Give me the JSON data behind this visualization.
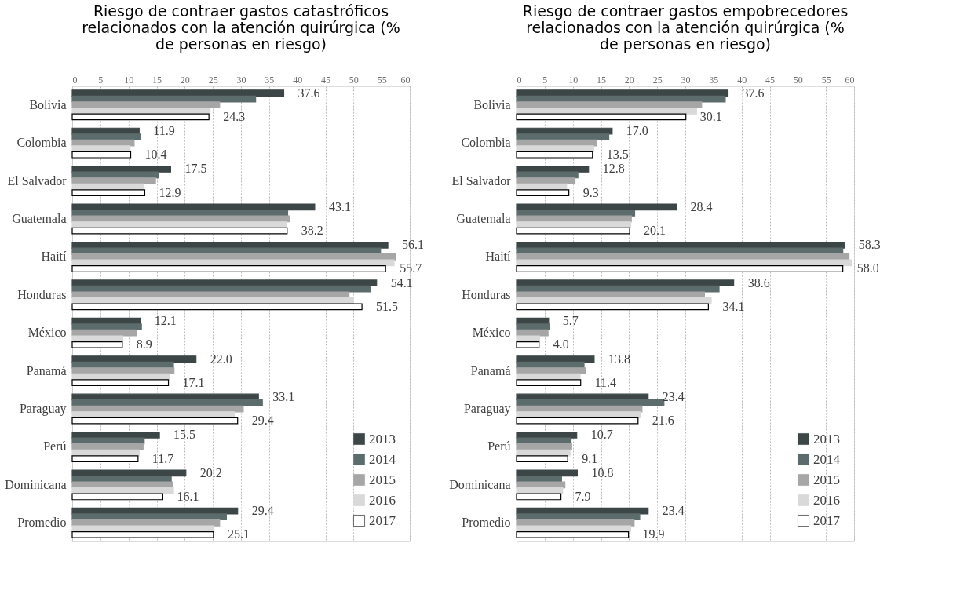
{
  "chart_data": [
    {
      "type": "bar",
      "orientation": "horizontal",
      "title": "Riesgo de contraer gastos catastróficos relacionados con la atención quirúrgica (% de personas en riesgo)",
      "categories": [
        "Bolivia",
        "Colombia",
        "El Salvador",
        "Guatemala",
        "Haití",
        "Honduras",
        "México",
        "Panamá",
        "Paraguay",
        "Perú",
        "Dominicana",
        "Promedio"
      ],
      "xlim": [
        0,
        60
      ],
      "xticks": [
        0,
        5,
        10,
        15,
        20,
        25,
        30,
        35,
        40,
        45,
        50,
        55,
        60
      ],
      "grid": "x",
      "legend": "bottom right",
      "series": [
        {
          "name": "2013",
          "color": "#3d4646",
          "values": [
            37.6,
            11.9,
            17.5,
            43.1,
            56.1,
            54.1,
            12.1,
            22.0,
            33.1,
            15.5,
            20.2,
            29.4
          ],
          "value_labels": [
            "37.6",
            "11.9",
            "17.5",
            "43.1",
            "56.1",
            "54.1",
            "12.1",
            "22.0",
            "33.1",
            "15.5",
            "20.2",
            "29.4"
          ]
        },
        {
          "name": "2014",
          "color": "#5c6b6b",
          "values": [
            32.6,
            12.1,
            15.3,
            38.3,
            54.8,
            53.0,
            12.3,
            18.0,
            33.8,
            12.8,
            17.6,
            27.4
          ]
        },
        {
          "name": "2015",
          "color": "#a6a6a6",
          "values": [
            26.2,
            11.0,
            14.8,
            38.6,
            57.5,
            49.2,
            11.4,
            18.1,
            30.4,
            12.6,
            17.8,
            26.2
          ]
        },
        {
          "name": "2016",
          "color": "#d9d9d9",
          "values": [
            24.5,
            10.3,
            12.6,
            38.1,
            57.2,
            50.0,
            9.0,
            17.3,
            28.8,
            11.9,
            18.0,
            25.2
          ]
        },
        {
          "name": "2017",
          "color": "#ffffff",
          "values": [
            24.3,
            10.4,
            12.9,
            38.2,
            55.7,
            51.5,
            8.9,
            17.1,
            29.4,
            11.7,
            16.1,
            25.1
          ],
          "value_labels": [
            "24.3",
            "10.4",
            "12.9",
            "38.2",
            "55.7",
            "51.5",
            "8.9",
            "17.1",
            "29.4",
            "11.7",
            "16.1",
            "25.1"
          ]
        }
      ]
    },
    {
      "type": "bar",
      "orientation": "horizontal",
      "title": "Riesgo de contraer gastos empobrecedores relacionados con la atención quirúrgica (% de personas en riesgo)",
      "categories": [
        "Bolivia",
        "Colombia",
        "El Salvador",
        "Guatemala",
        "Haití",
        "Honduras",
        "México",
        "Panamá",
        "Paraguay",
        "Perú",
        "Dominicana",
        "Promedio"
      ],
      "xlim": [
        0,
        60
      ],
      "xticks": [
        0,
        5,
        10,
        15,
        20,
        25,
        30,
        35,
        40,
        45,
        50,
        55,
        60
      ],
      "grid": "x",
      "legend": "bottom right",
      "series": [
        {
          "name": "2013",
          "color": "#3d4646",
          "values": [
            37.6,
            17.0,
            12.8,
            28.4,
            58.3,
            38.6,
            5.7,
            13.8,
            23.4,
            10.7,
            10.8,
            23.4
          ],
          "value_labels": [
            "37.6",
            "17.0",
            "12.8",
            "28.4",
            "58.3",
            "38.6",
            "5.7",
            "13.8",
            "23.4",
            "10.7",
            "10.8",
            "23.4"
          ]
        },
        {
          "name": "2014",
          "color": "#5c6b6b",
          "values": [
            37.1,
            16.4,
            10.9,
            21.0,
            58.0,
            36.0,
            5.9,
            12.0,
            26.2,
            9.7,
            8.0,
            21.9
          ]
        },
        {
          "name": "2015",
          "color": "#a6a6a6",
          "values": [
            32.9,
            14.2,
            10.4,
            20.4,
            59.1,
            33.4,
            5.6,
            12.2,
            22.3,
            9.8,
            8.6,
            20.9
          ]
        },
        {
          "name": "2016",
          "color": "#d9d9d9",
          "values": [
            32.0,
            13.7,
            8.9,
            20.3,
            59.5,
            34.6,
            4.1,
            11.3,
            22.0,
            9.5,
            8.2,
            20.3
          ]
        },
        {
          "name": "2017",
          "color": "#ffffff",
          "values": [
            30.1,
            13.5,
            9.3,
            20.1,
            58.0,
            34.1,
            4.0,
            11.4,
            21.6,
            9.1,
            7.9,
            19.9
          ],
          "value_labels": [
            "30.1",
            "13.5",
            "9.3",
            "20.1",
            "58.0",
            "34.1",
            "4.0",
            "11.4",
            "21.6",
            "9.1",
            "7.9",
            "19.9"
          ]
        }
      ]
    }
  ]
}
